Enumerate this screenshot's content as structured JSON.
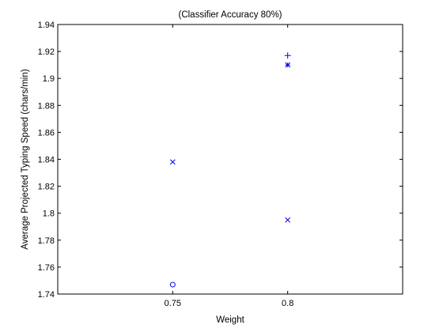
{
  "chart_data": {
    "type": "scatter",
    "title": "(Classifier Accuracy 80%)",
    "xlabel": "Weight",
    "ylabel": "Average Projected Typing Speed (chars/min)",
    "xlim": [
      0.7,
      0.85
    ],
    "ylim": [
      1.74,
      1.94
    ],
    "xticks": [
      0.75,
      0.8
    ],
    "xtick_labels": [
      "0.75",
      "0.8"
    ],
    "yticks": [
      1.74,
      1.76,
      1.78,
      1.8,
      1.82,
      1.84,
      1.86,
      1.88,
      1.9,
      1.92,
      1.94
    ],
    "ytick_labels": [
      "1.74",
      "1.76",
      "1.78",
      "1.8",
      "1.82",
      "1.84",
      "1.86",
      "1.88",
      "1.9",
      "1.92",
      "1.94"
    ],
    "grid": false,
    "legend": "none",
    "points": [
      {
        "marker": "x",
        "color": "#0000ff",
        "x": 0.75,
        "y": 1.838
      },
      {
        "marker": "o",
        "color": "#0000ff",
        "x": 0.75,
        "y": 1.747
      },
      {
        "marker": "+",
        "color": "#0000ff",
        "x": 0.8,
        "y": 1.917
      },
      {
        "marker": "*",
        "color": "#0000ff",
        "x": 0.8,
        "y": 1.91
      },
      {
        "marker": "x",
        "color": "#0000ff",
        "x": 0.8,
        "y": 1.795
      }
    ]
  }
}
